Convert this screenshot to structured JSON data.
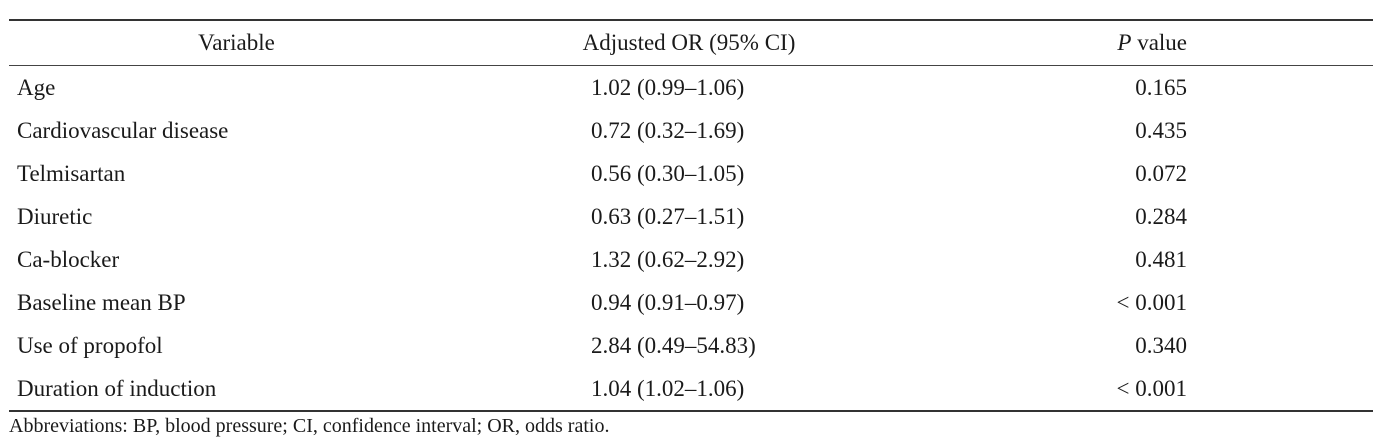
{
  "table": {
    "header": {
      "variable": "Variable",
      "or": "Adjusted OR (95% CI)",
      "p_italic": "P",
      "p_rest": " value"
    },
    "rows": [
      {
        "variable": "Age",
        "or": "1.02 (0.99–1.06)",
        "p": "0.165"
      },
      {
        "variable": "Cardiovascular disease",
        "or": "0.72 (0.32–1.69)",
        "p": "0.435"
      },
      {
        "variable": "Telmisartan",
        "or": "0.56 (0.30–1.05)",
        "p": "0.072"
      },
      {
        "variable": "Diuretic",
        "or": "0.63 (0.27–1.51)",
        "p": "0.284"
      },
      {
        "variable": "Ca-blocker",
        "or": "1.32 (0.62–2.92)",
        "p": "0.481"
      },
      {
        "variable": "Baseline mean BP",
        "or": "0.94 (0.91–0.97)",
        "p": "< 0.001"
      },
      {
        "variable": "Use of propofol",
        "or": "2.84 (0.49–54.83)",
        "p": "0.340"
      },
      {
        "variable": "Duration of induction",
        "or": "1.04 (1.02–1.06)",
        "p": "< 0.001"
      }
    ]
  },
  "footnote": "Abbreviations: BP, blood pressure; CI, confidence interval; OR, odds ratio."
}
